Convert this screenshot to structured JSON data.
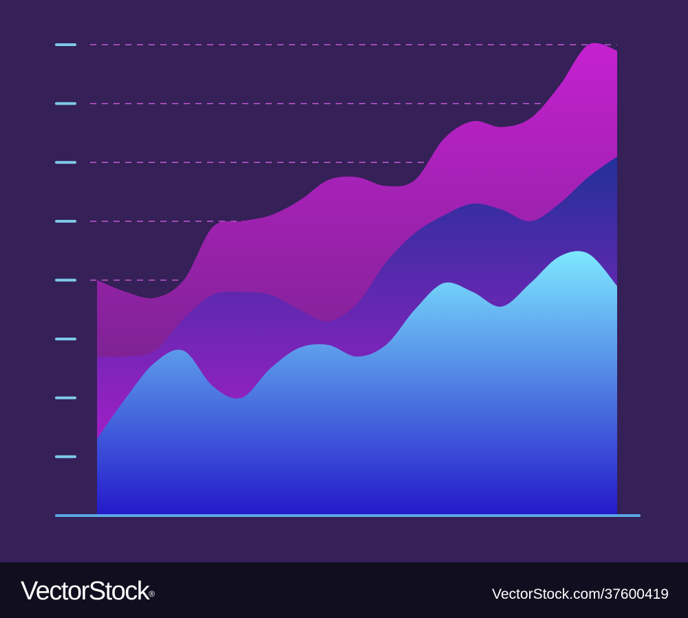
{
  "chart_data": {
    "type": "area",
    "title": "",
    "xlabel": "",
    "ylabel": "",
    "y_tick_count": 8,
    "ylim": [
      0,
      8
    ],
    "grid": "dashed horizontal lines (upper half)",
    "legend": "none",
    "x": [
      0,
      1,
      2,
      3,
      4,
      5,
      6,
      7,
      8,
      9,
      10,
      11,
      12,
      13,
      14,
      15,
      16,
      17,
      18
    ],
    "series": [
      {
        "color_top": "#7de8ff",
        "color_bottom": "#2419c9",
        "values": [
          1.3,
          2.0,
          2.6,
          2.8,
          2.2,
          2.0,
          2.5,
          2.85,
          2.9,
          2.7,
          2.9,
          3.5,
          3.95,
          3.8,
          3.55,
          3.95,
          4.4,
          4.45,
          3.9
        ]
      },
      {
        "color_top": "#23309a",
        "color_bottom": "#c01bd1",
        "values": [
          2.7,
          2.7,
          2.8,
          3.35,
          3.75,
          3.8,
          3.75,
          3.5,
          3.3,
          3.6,
          4.3,
          4.8,
          5.1,
          5.3,
          5.2,
          5.0,
          5.3,
          5.75,
          6.1
        ]
      },
      {
        "color_top": "#c521d0",
        "color_bottom": "#5c2278",
        "values": [
          4.0,
          3.8,
          3.7,
          4.0,
          4.9,
          5.0,
          5.1,
          5.35,
          5.7,
          5.75,
          5.6,
          5.7,
          6.4,
          6.7,
          6.6,
          6.75,
          7.3,
          8.0,
          7.9
        ]
      }
    ]
  },
  "colors": {
    "background": "#352057",
    "tick_marks": "#7ecbea",
    "grid_lines": "#c45ad6",
    "baseline": "#5aa9e6",
    "footer_bg": "#110f1f",
    "footer_text": "#ffffff"
  },
  "footer": {
    "brand": "VectorStock",
    "brand_mark": "®",
    "image_id": "VectorStock.com/37600419"
  }
}
